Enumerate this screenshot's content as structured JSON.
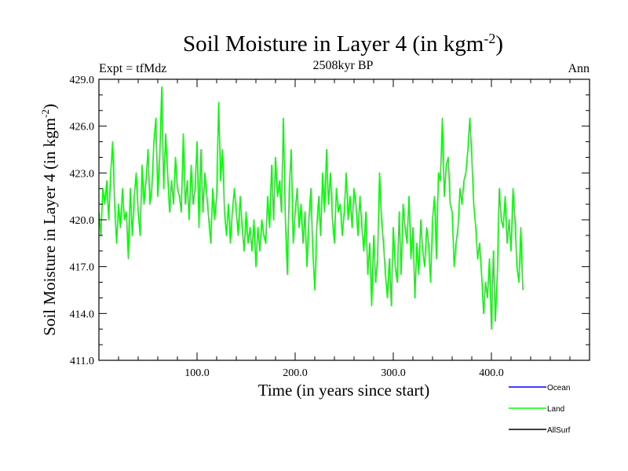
{
  "chart_data": {
    "type": "line",
    "title_main": "Soil Moisture in Layer 4 (in kgm",
    "title_sup": "-2",
    "title_close": ")",
    "subtitle_left": "Expt = tfMdz",
    "subtitle_center": "2508kyr BP",
    "subtitle_right": "Ann",
    "xlabel": "Time (in years since start)",
    "ylabel_main": "Soil Moisture in Layer 4 (in kgm",
    "ylabel_sup": "-2",
    "ylabel_close": ")",
    "xlim": [
      0,
      500
    ],
    "ylim": [
      411,
      429
    ],
    "x_ticks": [
      100,
      200,
      300,
      400
    ],
    "x_tick_labels": [
      "100.0",
      "200.0",
      "300.0",
      "400.0"
    ],
    "y_ticks": [
      411,
      414,
      417,
      420,
      423,
      426,
      429
    ],
    "y_tick_labels": [
      "411.0",
      "414.0",
      "417.0",
      "420.0",
      "423.0",
      "426.0",
      "429.0"
    ],
    "legend": [
      {
        "name": "Ocean",
        "color": "#0000ff"
      },
      {
        "name": "Land",
        "color": "#00ff00"
      },
      {
        "name": "AllSurf",
        "color": "#000000"
      }
    ],
    "series": [
      {
        "name": "Land",
        "color": "#00ff00",
        "x_step": 2,
        "values": [
          420.5,
          419.0,
          422.0,
          421.0,
          422.5,
          420.0,
          423.0,
          425.0,
          421.0,
          418.5,
          421.0,
          419.5,
          422.0,
          420.0,
          420.5,
          417.5,
          422.0,
          419.0,
          421.5,
          423.0,
          420.5,
          419.0,
          423.5,
          421.0,
          422.5,
          424.5,
          421.0,
          422.0,
          425.0,
          426.5,
          421.5,
          424.0,
          428.5,
          422.0,
          425.5,
          423.0,
          420.5,
          422.5,
          421.0,
          424.0,
          422.0,
          421.5,
          420.5,
          425.5,
          421.0,
          422.5,
          420.0,
          423.5,
          421.0,
          422.0,
          425.0,
          419.5,
          424.5,
          420.5,
          423.0,
          421.5,
          420.0,
          418.5,
          422.0,
          420.0,
          421.5,
          427.5,
          422.5,
          424.5,
          420.5,
          419.0,
          421.0,
          418.5,
          420.5,
          422.0,
          420.5,
          419.0,
          421.5,
          419.5,
          418.0,
          420.5,
          418.5,
          419.5,
          418.0,
          420.0,
          417.0,
          419.5,
          418.0,
          420.0,
          419.0,
          418.5,
          421.5,
          419.5,
          423.5,
          420.0,
          424.0,
          421.5,
          422.5,
          420.5,
          426.5,
          420.0,
          416.5,
          422.0,
          424.5,
          418.5,
          420.5,
          422.0,
          419.5,
          421.0,
          418.5,
          420.5,
          417.0,
          420.0,
          422.0,
          418.0,
          415.5,
          419.5,
          421.5,
          419.0,
          423.0,
          420.5,
          424.5,
          421.0,
          423.0,
          420.0,
          418.5,
          422.0,
          420.5,
          421.0,
          419.0,
          420.5,
          423.0,
          420.0,
          421.5,
          419.5,
          422.0,
          421.0,
          419.0,
          421.5,
          419.5,
          418.0,
          420.5,
          416.5,
          418.5,
          414.5,
          419.0,
          416.0,
          417.5,
          423.0,
          420.0,
          418.5,
          416.5,
          415.0,
          417.5,
          414.5,
          419.5,
          417.0,
          416.0,
          420.5,
          416.5,
          421.0,
          419.5,
          418.5,
          421.5,
          417.5,
          419.5,
          415.0,
          418.5,
          416.5,
          420.0,
          418.0,
          417.0,
          419.5,
          418.5,
          416.0,
          420.0,
          421.5,
          417.5,
          423.0,
          422.5,
          426.5,
          421.5,
          423.5,
          424.0,
          421.0,
          420.5,
          417.0,
          418.5,
          419.5,
          422.0,
          421.0,
          422.5,
          423.0,
          424.5,
          426.5,
          424.0,
          421.0,
          419.5,
          417.5,
          418.5,
          416.5,
          414.0,
          416.0,
          415.0,
          417.5,
          413.0,
          418.0,
          413.5,
          416.5,
          422.0,
          420.0,
          419.5,
          421.5,
          418.5,
          420.0,
          418.0,
          422.0,
          420.0,
          417.0,
          416.0,
          419.5,
          415.5
        ]
      }
    ]
  }
}
